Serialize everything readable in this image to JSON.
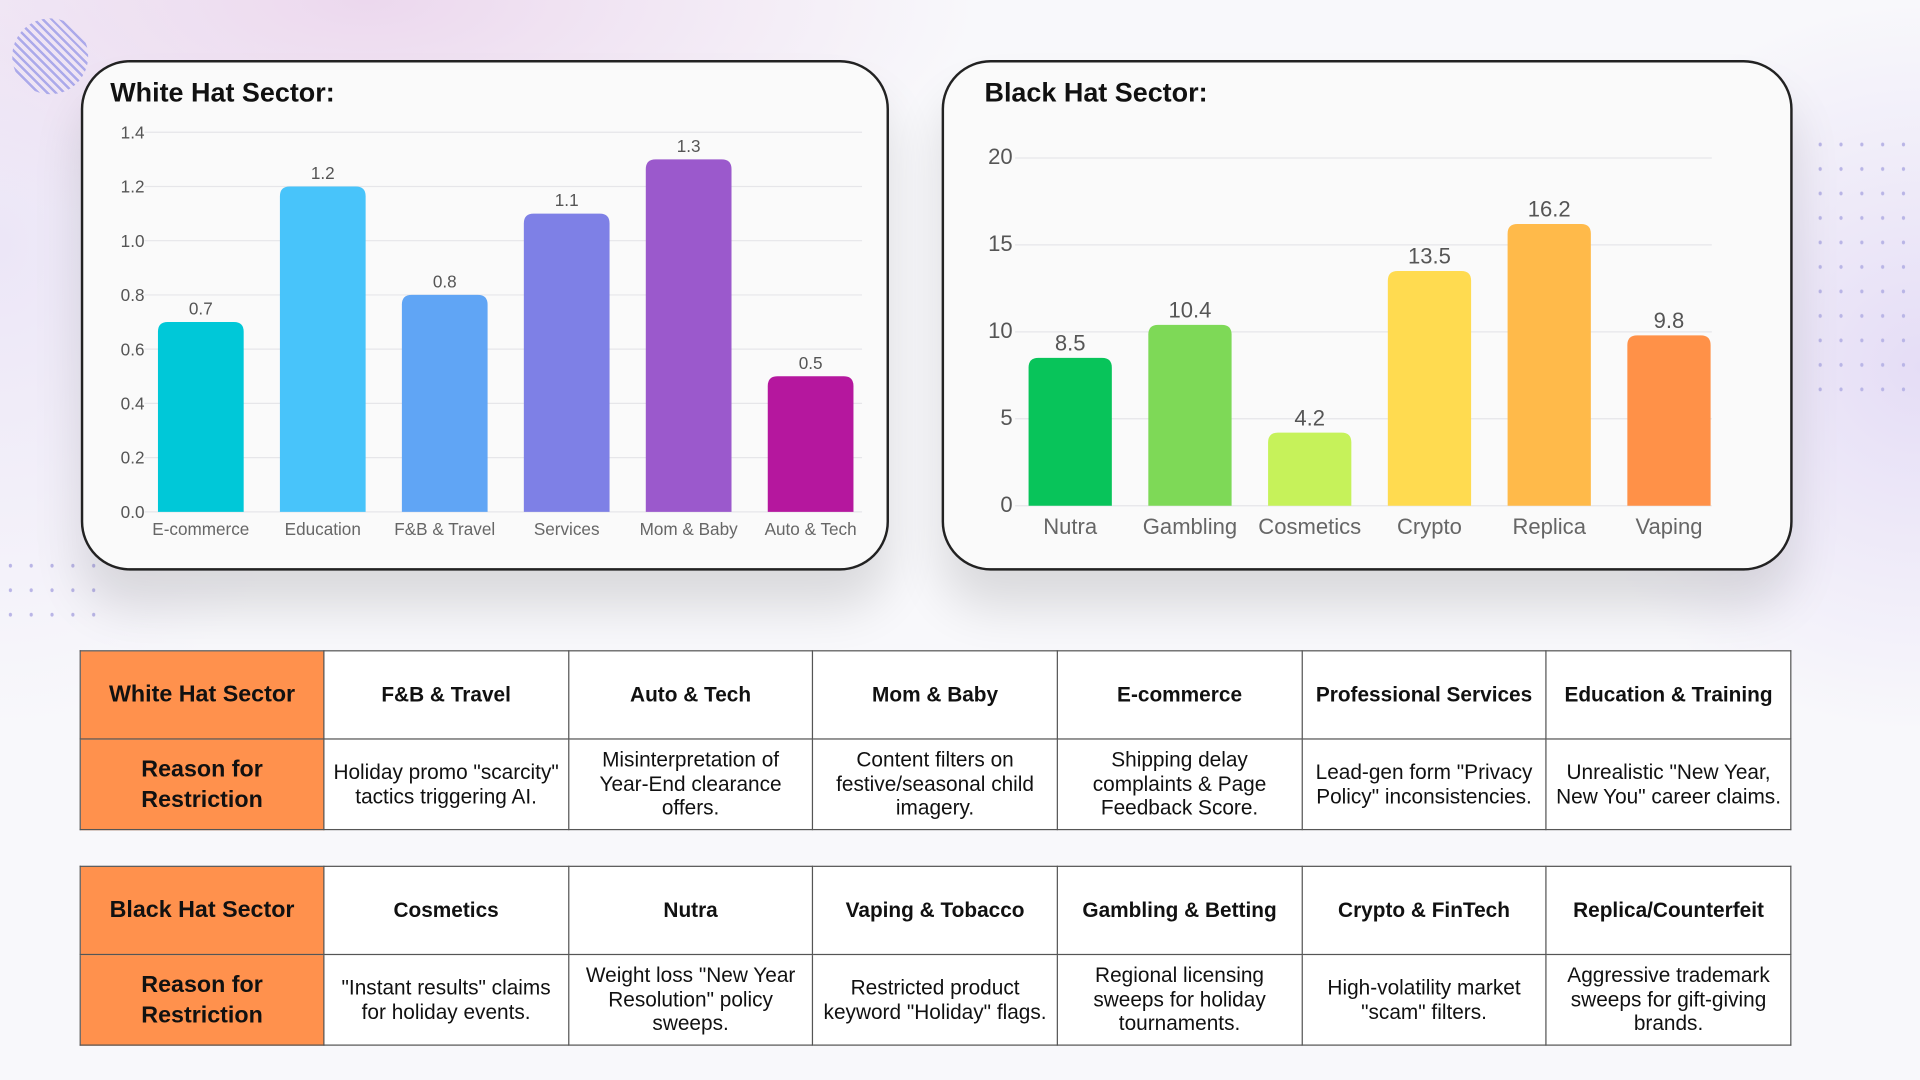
{
  "chart_data": [
    {
      "type": "bar",
      "title": "White Hat Sector:",
      "ylim": [
        0,
        1.4
      ],
      "yticks": [
        "0.0",
        "0.2",
        "0.4",
        "0.6",
        "0.8",
        "1.0",
        "1.2",
        "1.4"
      ],
      "categories": [
        "E-commerce",
        "Education",
        "F&B & Travel",
        "Services",
        "Mom & Baby",
        "Auto & Tech"
      ],
      "values": [
        0.7,
        1.2,
        0.8,
        1.1,
        1.3,
        0.5
      ],
      "labels": [
        "0.7",
        "1.2",
        "0.8",
        "1.1",
        "1.3",
        "0.5"
      ],
      "colors": [
        "#00C8D8",
        "#48C4FA",
        "#60A5F5",
        "#7E80E6",
        "#9B59CC",
        "#B5179E"
      ],
      "grid": true
    },
    {
      "type": "bar",
      "title": "Black Hat Sector:",
      "ylim": [
        0,
        20
      ],
      "yticks": [
        "0",
        "5",
        "10",
        "15",
        "20"
      ],
      "categories": [
        "Nutra",
        "Gambling",
        "Cosmetics",
        "Crypto",
        "Replica",
        "Vaping"
      ],
      "values": [
        8.5,
        10.4,
        4.2,
        13.5,
        16.2,
        9.8
      ],
      "labels": [
        "8.5",
        "10.4",
        "4.2",
        "13.5",
        "16.2",
        "9.8"
      ],
      "colors": [
        "#08C45A",
        "#7ED957",
        "#C6F25A",
        "#FFDB50",
        "#FFBA4A",
        "#FF9148"
      ],
      "grid": true
    }
  ],
  "tables": [
    {
      "header": "White Hat Sector",
      "reason_label": "Reason for Restriction",
      "sectors": [
        "F&B & Travel",
        "Auto & Tech",
        "Mom & Baby",
        "E-commerce",
        "Professional Services",
        "Education & Training"
      ],
      "reasons": [
        "Holiday promo \"scarcity\" tactics triggering AI.",
        "Misinterpretation of Year-End clearance offers.",
        "Content filters on festive/seasonal child imagery.",
        "Shipping delay complaints & Page Feedback Score.",
        "Lead-gen form \"Privacy Policy\" inconsistencies.",
        "Unrealistic \"New Year, New You\" career claims."
      ]
    },
    {
      "header": "Black Hat Sector",
      "reason_label": "Reason for Restriction",
      "sectors": [
        "Cosmetics",
        "Nutra",
        "Vaping & Tobacco",
        "Gambling & Betting",
        "Crypto & FinTech",
        "Replica/Counterfeit"
      ],
      "reasons": [
        "\"Instant results\" claims for holiday events.",
        "Weight loss \"New Year Resolution\" policy sweeps.",
        "Restricted product keyword \"Holiday\" flags.",
        "Regional licensing sweeps for holiday tournaments.",
        "High-volatility market \"scam\" filters.",
        "Aggressive trademark sweeps for gift-giving brands."
      ]
    }
  ],
  "colors": {
    "header_bg": "#FF914D"
  }
}
